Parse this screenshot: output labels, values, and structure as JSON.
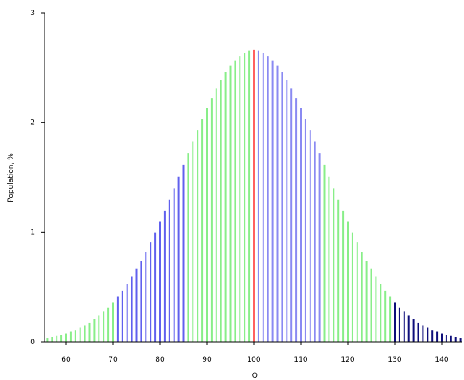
{
  "chart_data": {
    "type": "bar",
    "title": "",
    "xlabel": "IQ",
    "ylabel": "Population, %",
    "xlim": [
      55,
      145
    ],
    "ylim": [
      0,
      3
    ],
    "grid": false,
    "x_ticks": [
      "60",
      "70",
      "80",
      "90",
      "100",
      "110",
      "120",
      "130",
      "140"
    ],
    "y_ticks": [
      "0",
      "1",
      "2",
      "3"
    ],
    "distribution": {
      "mean": 100,
      "sd": 15
    },
    "bar_x_range": [
      55,
      145
    ],
    "colors": {
      "extreme": "#0d0d7a",
      "mid_blue": "#6060ee",
      "green": "#88ee88",
      "light_blue": "#8a8af2",
      "center": "#ff6060"
    },
    "color_bands": [
      {
        "from": 55,
        "to": 70,
        "color": "green"
      },
      {
        "from": 71,
        "to": 85,
        "color": "mid_blue"
      },
      {
        "from": 86,
        "to": 99,
        "color": "green"
      },
      {
        "from": 100,
        "to": 100,
        "color": "center"
      },
      {
        "from": 101,
        "to": 114,
        "color": "light_blue"
      },
      {
        "from": 115,
        "to": 129,
        "color": "green"
      },
      {
        "from": 130,
        "to": 145,
        "color": "extreme"
      }
    ]
  }
}
